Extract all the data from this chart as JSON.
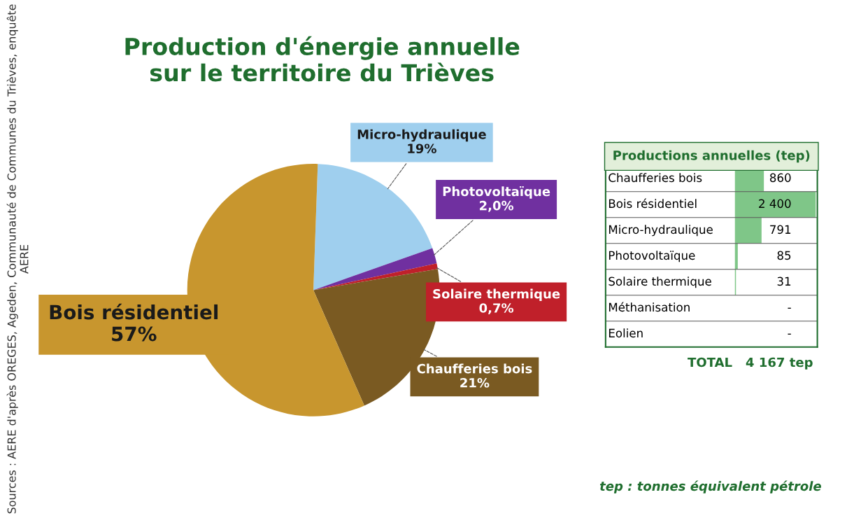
{
  "chart_data": [
    {
      "type": "pie",
      "title": "Production d'énergie annuelle\nsur le territoire du Trièves",
      "categories": [
        "Micro-hydraulique",
        "Photovoltaïque",
        "Solaire thermique",
        "Chaufferies bois",
        "Bois résidentiel"
      ],
      "values": [
        19,
        2.0,
        0.7,
        21,
        57
      ],
      "value_labels": [
        "19%",
        "2,0%",
        "0,7%",
        "21%",
        "57%"
      ],
      "colors": [
        "#9fcfee",
        "#7030a0",
        "#c0202a",
        "#7a5a22",
        "#c8962e"
      ],
      "annotations": [
        "Sources : AERE d'après OREGES, Ageden, Communauté de Communes du Trièves, enquête AERE",
        "tep : tonnes équivalent pétrole"
      ]
    },
    {
      "type": "bar",
      "orientation": "horizontal",
      "title": "Productions annuelles (tep)",
      "categories": [
        "Chaufferies bois",
        "Bois résidentiel",
        "Micro-hydraulique",
        "Photovoltaïque",
        "Solaire thermique",
        "Méthanisation",
        "Eolien"
      ],
      "values": [
        860,
        2400,
        791,
        85,
        31,
        null,
        null
      ],
      "value_labels": [
        "860",
        "2 400",
        "791",
        "85",
        "31",
        "-",
        "-"
      ],
      "color": "#5fb86a",
      "annotations": [
        "TOTAL   4 167 tep"
      ]
    }
  ]
}
